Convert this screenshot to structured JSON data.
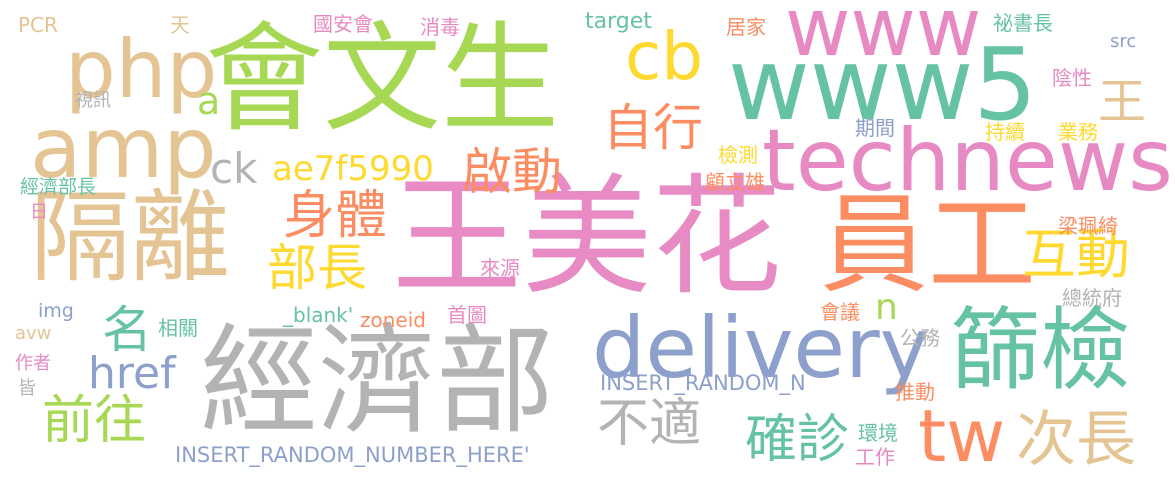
{
  "cloud": {
    "words": [
      {
        "text": "王美花",
        "color": "#e88bc4"
      },
      {
        "text": "員工",
        "color": "#fc8d62"
      },
      {
        "text": "會文生",
        "color": "#a6d854"
      },
      {
        "text": "經濟部",
        "color": "#b3b3b3"
      },
      {
        "text": "www5",
        "color": "#66c2a5"
      },
      {
        "text": "www",
        "color": "#e78ac3"
      },
      {
        "text": "隔離",
        "color": "#e5c494"
      },
      {
        "text": "technews",
        "color": "#e78ac3"
      },
      {
        "text": "amp",
        "color": "#e5c494"
      },
      {
        "text": "php",
        "color": "#e5c494"
      },
      {
        "text": "篩檢",
        "color": "#66c2a5"
      },
      {
        "text": "delivery",
        "color": "#8da0cb"
      },
      {
        "text": "cb",
        "color": "#ffd92f"
      },
      {
        "text": "自行",
        "color": "#fc8d62"
      },
      {
        "text": "tw",
        "color": "#fc8d62"
      },
      {
        "text": "次長",
        "color": "#e5c494"
      },
      {
        "text": "啟動",
        "color": "#fc8d62"
      },
      {
        "text": "身體",
        "color": "#fc8d62"
      },
      {
        "text": "部長",
        "color": "#ffd92f"
      },
      {
        "text": "互動",
        "color": "#ffd92f"
      },
      {
        "text": "確診",
        "color": "#66c2a5"
      },
      {
        "text": "前往",
        "color": "#a6d854"
      },
      {
        "text": "不適",
        "color": "#b3b3b3"
      },
      {
        "text": "ae7f5990",
        "color": "#ffd92f"
      },
      {
        "text": "名",
        "color": "#66c2a5"
      },
      {
        "text": "href",
        "color": "#8da0cb"
      },
      {
        "text": "ck",
        "color": "#b3b3b3"
      },
      {
        "text": "a",
        "color": "#a6d854"
      },
      {
        "text": "n",
        "color": "#a6d854"
      },
      {
        "text": "王",
        "color": "#e5c494"
      },
      {
        "text": "INSERT_RANDOM_NUMBER_HERE'",
        "color": "#8da0cb"
      },
      {
        "text": "INSERT_RANDOM_N",
        "color": "#8da0cb"
      },
      {
        "text": "PCR",
        "color": "#e5c494"
      },
      {
        "text": "天",
        "color": "#e5c494"
      },
      {
        "text": "國安會",
        "color": "#e78ac3"
      },
      {
        "text": "消毒",
        "color": "#e78ac3"
      },
      {
        "text": "target",
        "color": "#66c2a5"
      },
      {
        "text": "居家",
        "color": "#fc8d62"
      },
      {
        "text": "祕書長",
        "color": "#66c2a5"
      },
      {
        "text": "src",
        "color": "#8da0cb"
      },
      {
        "text": "陰性",
        "color": "#e78ac3"
      },
      {
        "text": "視訊",
        "color": "#b3b3b3"
      },
      {
        "text": "期間",
        "color": "#8da0cb"
      },
      {
        "text": "持續",
        "color": "#ffd92f"
      },
      {
        "text": "業務",
        "color": "#ffd92f"
      },
      {
        "text": "檢測",
        "color": "#ffd92f"
      },
      {
        "text": "經濟部長",
        "color": "#66c2a5"
      },
      {
        "text": "顧立雄",
        "color": "#fc8d62"
      },
      {
        "text": "日",
        "color": "#e78ac3"
      },
      {
        "text": "梁珮綺",
        "color": "#fc8d62"
      },
      {
        "text": "來源",
        "color": "#e78ac3"
      },
      {
        "text": "img",
        "color": "#8da0cb"
      },
      {
        "text": "相關",
        "color": "#66c2a5"
      },
      {
        "text": "_blank'",
        "color": "#66c2a5"
      },
      {
        "text": "zoneid",
        "color": "#fc8d62"
      },
      {
        "text": "首圖",
        "color": "#e78ac3"
      },
      {
        "text": "總統府",
        "color": "#b3b3b3"
      },
      {
        "text": "會議",
        "color": "#fc8d62"
      },
      {
        "text": "avw",
        "color": "#e5c494"
      },
      {
        "text": "公務",
        "color": "#b3b3b3"
      },
      {
        "text": "作者",
        "color": "#e78ac3"
      },
      {
        "text": "皆",
        "color": "#b3b3b3"
      },
      {
        "text": "推動",
        "color": "#fc8d62"
      },
      {
        "text": "環境",
        "color": "#66c2a5"
      },
      {
        "text": "工作",
        "color": "#e78ac3"
      }
    ]
  }
}
